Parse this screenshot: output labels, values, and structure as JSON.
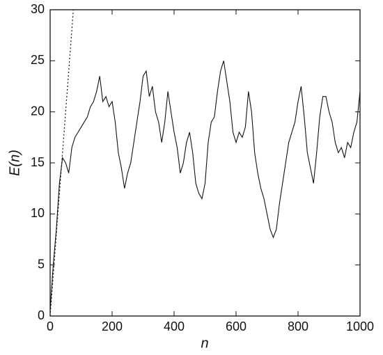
{
  "chart_data": {
    "type": "line",
    "x_label": "n",
    "y_label": "E(n)",
    "xlim": [
      0,
      1000
    ],
    "ylim": [
      0,
      30
    ],
    "xticks": [
      0,
      200,
      400,
      600,
      800,
      1000
    ],
    "yticks": [
      0,
      5,
      10,
      15,
      20,
      25,
      30
    ],
    "series": [
      {
        "color": "#111111",
        "style": "solid",
        "x": [
          0,
          10,
          20,
          30,
          40,
          50,
          60,
          70,
          80,
          90,
          100,
          110,
          120,
          130,
          140,
          150,
          160,
          170,
          180,
          190,
          200,
          210,
          220,
          230,
          240,
          250,
          260,
          270,
          280,
          290,
          300,
          310,
          320,
          330,
          340,
          350,
          360,
          370,
          380,
          390,
          400,
          410,
          420,
          430,
          440,
          450,
          460,
          470,
          480,
          490,
          500,
          510,
          520,
          530,
          540,
          550,
          560,
          570,
          580,
          590,
          600,
          610,
          620,
          630,
          640,
          650,
          660,
          670,
          680,
          690,
          700,
          710,
          720,
          730,
          740,
          750,
          760,
          770,
          780,
          790,
          800,
          810,
          820,
          830,
          840,
          850,
          860,
          870,
          880,
          890,
          900,
          910,
          920,
          930,
          940,
          950,
          960,
          970,
          980,
          990,
          1000
        ],
        "values": [
          0.5,
          5,
          8.5,
          13,
          15.5,
          15,
          14,
          16.5,
          17.5,
          18,
          18.5,
          19,
          19.5,
          20.5,
          21,
          22,
          23.5,
          21,
          21.5,
          20.5,
          21,
          19,
          16,
          14.5,
          12.5,
          14,
          15,
          17,
          19,
          21,
          23.5,
          24,
          21.5,
          22.5,
          20,
          19,
          17,
          19,
          22,
          20,
          18,
          16.5,
          14,
          15,
          17,
          18,
          16,
          13,
          12,
          11.5,
          13,
          17,
          19,
          19.5,
          22,
          24,
          25,
          23,
          21,
          18,
          17,
          18,
          17.5,
          18.5,
          22,
          20,
          16,
          14,
          12.5,
          11.5,
          10,
          8.5,
          7.7,
          8.5,
          11,
          13,
          15,
          17,
          18,
          19,
          21,
          22.5,
          19.5,
          16,
          14.5,
          13,
          16,
          19.5,
          21.5,
          21.5,
          20,
          19,
          17,
          16,
          16.5,
          15.5,
          17,
          16.5,
          18,
          19,
          22
        ]
      },
      {
        "color": "#111111",
        "style": "dashed",
        "x": [
          0,
          75
        ],
        "values": [
          0,
          30
        ]
      }
    ]
  }
}
